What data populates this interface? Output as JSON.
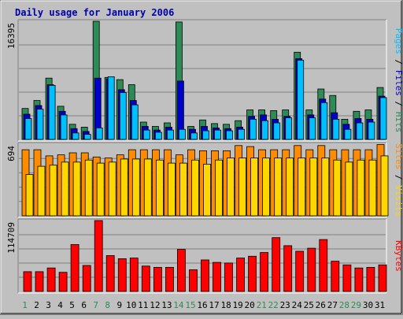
{
  "chart_data": {
    "type": "bar",
    "title": "Daily usage for January 2006",
    "categories": [
      "1",
      "2",
      "3",
      "4",
      "5",
      "6",
      "7",
      "8",
      "9",
      "10",
      "11",
      "12",
      "13",
      "14",
      "15",
      "16",
      "17",
      "18",
      "19",
      "20",
      "21",
      "22",
      "23",
      "24",
      "25",
      "26",
      "27",
      "28",
      "29",
      "30",
      "31"
    ],
    "weekend_days": [
      "1",
      "7",
      "8",
      "14",
      "15",
      "21",
      "22",
      "28",
      "29"
    ],
    "panels": [
      {
        "id": "top",
        "ymax": 16395,
        "ylabel_parts": [
          {
            "text": "Pages",
            "color": "#00bfff"
          },
          {
            "text": " / ",
            "color": "#000000"
          },
          {
            "text": "Files",
            "color": "#0000cd"
          },
          {
            "text": " / ",
            "color": "#000000"
          },
          {
            "text": "Hits",
            "color": "#2e8b57"
          }
        ],
        "series": [
          {
            "name": "Hits",
            "color": "#2e8b57",
            "values": [
              4300,
              5400,
              8500,
              4600,
              2100,
              1700,
              16395,
              8600,
              8300,
              7600,
              2400,
              1800,
              2300,
              16300,
              1800,
              2700,
              2200,
              2100,
              2600,
              4100,
              4100,
              4000,
              4100,
              12100,
              4100,
              7000,
              6100,
              2800,
              3900,
              4100,
              7200
            ]
          },
          {
            "name": "Files",
            "color": "#0000cd",
            "values": [
              3500,
              4700,
              7600,
              3900,
              1500,
              1100,
              8500,
              8400,
              6900,
              5400,
              1800,
              1300,
              1700,
              8100,
              1400,
              1800,
              1600,
              1500,
              1700,
              3200,
              3400,
              2800,
              3200,
              11200,
              3400,
              5600,
              3700,
              2100,
              2900,
              2800,
              6000
            ]
          },
          {
            "name": "Pages",
            "color": "#00bfff",
            "values": [
              2900,
              4200,
              7500,
              3400,
              900,
              700,
              1600,
              8700,
              6500,
              4800,
              1300,
              1000,
              1300,
              1400,
              900,
              1200,
              1300,
              1200,
              1400,
              2800,
              2600,
              2300,
              3000,
              11000,
              3000,
              5100,
              2800,
              1400,
              2300,
              2400,
              5800
            ]
          }
        ]
      },
      {
        "id": "middle",
        "ymax": 694,
        "ylabel_parts": [
          {
            "text": "Sites",
            "color": "#ff8c00"
          },
          {
            "text": " / ",
            "color": "#000000"
          },
          {
            "text": "Visits",
            "color": "#ffd700"
          }
        ],
        "series": [
          {
            "name": "Sites",
            "color": "#ff8c00",
            "values": [
              640,
              640,
              580,
              590,
              610,
              610,
              570,
              560,
              590,
              640,
              640,
              640,
              640,
              590,
              640,
              630,
              630,
              630,
              680,
              670,
              640,
              640,
              640,
              680,
              640,
              680,
              640,
              640,
              640,
              640,
              690
            ]
          },
          {
            "name": "Visits",
            "color": "#ffd700",
            "values": [
              400,
              480,
              490,
              520,
              520,
              540,
              510,
              520,
              550,
              550,
              550,
              540,
              510,
              510,
              540,
              500,
              540,
              560,
              560,
              560,
              560,
              560,
              560,
              560,
              560,
              560,
              540,
              520,
              540,
              540,
              580
            ]
          }
        ]
      },
      {
        "id": "bottom",
        "ymax": 114709,
        "ylabel_parts": [
          {
            "text": "KBytes",
            "color": "#ff0000"
          }
        ],
        "series": [
          {
            "name": "KBytes",
            "color": "#ff0000",
            "values": [
              32000,
              32000,
              38000,
              31000,
              76000,
              42000,
              114709,
              58000,
              53000,
              54000,
              41000,
              39000,
              39000,
              68000,
              35000,
              51000,
              47000,
              46000,
              54000,
              57000,
              63000,
              87000,
              74000,
              65000,
              70000,
              84000,
              49000,
              43000,
              38000,
              39000,
              43000
            ]
          }
        ]
      }
    ]
  }
}
